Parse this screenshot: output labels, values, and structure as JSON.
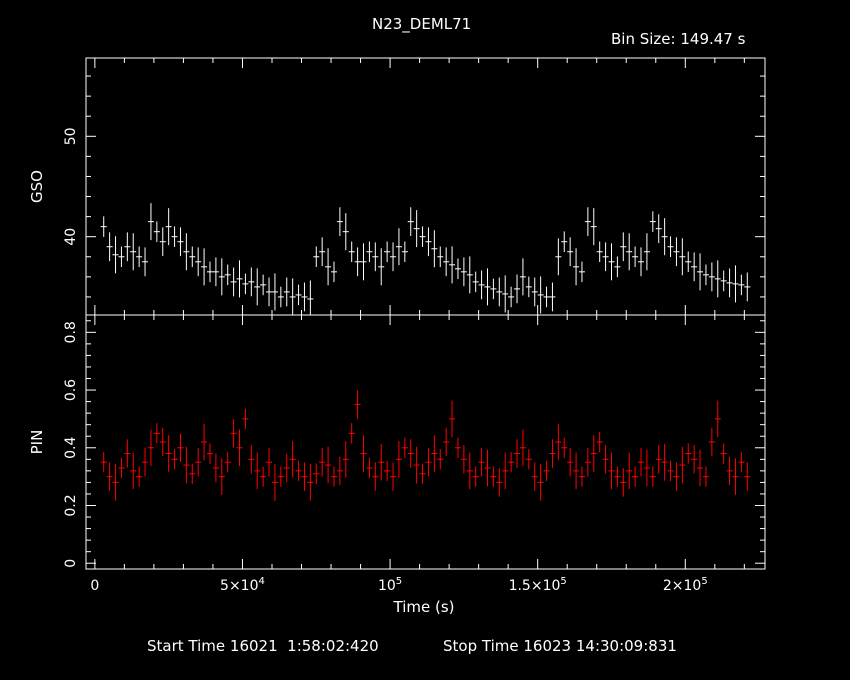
{
  "title": "N23_DEML71",
  "bin_size_label": "Bin Size:",
  "bin_size_value": "149.47 s",
  "start_time_label": "Start Time",
  "start_time": "16021  1:58:02:420",
  "stop_time_label": "Stop Time",
  "stop_time": "16023 14:30:09:831",
  "colors": {
    "background": "#000000",
    "axes": "#ffffff",
    "gso": "#ffffff",
    "pin": "#ff0000"
  },
  "chart_data": [
    {
      "type": "line",
      "panel": "top",
      "ylabel": "GSO",
      "xlim": [
        -3000,
        227000
      ],
      "ylim": [
        32.2,
        57.8
      ],
      "yticks": [
        40,
        50
      ],
      "x_tick_labels": [],
      "x": [
        3000,
        5000,
        7000,
        9000,
        11000,
        13000,
        15000,
        17000,
        19000,
        21000,
        23000,
        25000,
        27000,
        29000,
        31000,
        33000,
        35000,
        37000,
        39000,
        41000,
        43000,
        45000,
        47000,
        49000,
        51000,
        53000,
        55000,
        57000,
        59000,
        61000,
        63000,
        65000,
        67000,
        69000,
        71000,
        73000,
        75000,
        77000,
        79000,
        81000,
        83000,
        85000,
        87000,
        89000,
        91000,
        93000,
        95000,
        97000,
        99000,
        101000,
        103000,
        105000,
        107000,
        109000,
        111000,
        113000,
        115000,
        117000,
        119000,
        121000,
        123000,
        125000,
        127000,
        129000,
        131000,
        133000,
        135000,
        137000,
        139000,
        141000,
        143000,
        145000,
        147000,
        149000,
        151000,
        153000,
        155000,
        157000,
        159000,
        161000,
        163000,
        165000,
        167000,
        169000,
        171000,
        173000,
        175000,
        177000,
        179000,
        181000,
        183000,
        185000,
        187000,
        189000,
        191000,
        193000,
        195000,
        197000,
        199000,
        201000,
        203000,
        205000,
        207000,
        209000,
        211000,
        213000,
        215000,
        217000,
        219000,
        221000
      ],
      "y": [
        41,
        39,
        38.2,
        38,
        39,
        38.5,
        38,
        37.5,
        41.5,
        40.5,
        39.5,
        41,
        40,
        39.5,
        38.5,
        38,
        37.5,
        37,
        36.5,
        36.5,
        36,
        36.2,
        35.5,
        35.8,
        35.3,
        35.5,
        35,
        35.2,
        34.5,
        34.5,
        34,
        34.5,
        34,
        34.2,
        34,
        33.8,
        38,
        38.5,
        37,
        36.5,
        41.5,
        40.5,
        38.5,
        37.5,
        37.5,
        38.5,
        38,
        37,
        38.5,
        38,
        39,
        38.5,
        41.5,
        40.8,
        40,
        39.5,
        38.8,
        38,
        37.5,
        37.2,
        36.8,
        36.5,
        36.2,
        35.5,
        35.2,
        35,
        34.8,
        34.5,
        34.3,
        34,
        34.8,
        36,
        35,
        34.5,
        34.2,
        34,
        34,
        38,
        39.5,
        38.5,
        37,
        36.5,
        41.5,
        41,
        38.5,
        38,
        37.5,
        37,
        39,
        38.5,
        38,
        37.5,
        38.5,
        41.5,
        40.8,
        40,
        39,
        38.5,
        38,
        37.5,
        37,
        36.5,
        36.2,
        36,
        35.8,
        35.6,
        35.4,
        35.3,
        35.2,
        35
      ]
    },
    {
      "type": "line",
      "panel": "bottom",
      "ylabel": "PIN",
      "xlabel": "Time (s)",
      "xlim": [
        -3000,
        227000
      ],
      "ylim": [
        -0.02,
        0.86
      ],
      "yticks": [
        0,
        0.2,
        0.4,
        0.6,
        0.8
      ],
      "y_tick_labels": [
        "0",
        "0.2",
        "0.4",
        "0.6",
        "0.8"
      ],
      "xticks": [
        0,
        50000,
        100000,
        150000,
        200000
      ],
      "x_tick_labels": [
        {
          "base": "0"
        },
        {
          "base": "5×10",
          "exp": "4"
        },
        {
          "base": "10",
          "exp": "5"
        },
        {
          "base": "1.5×10",
          "exp": "5"
        },
        {
          "base": "2×10",
          "exp": "5"
        }
      ],
      "x": [
        3000,
        5000,
        7000,
        9000,
        11000,
        13000,
        15000,
        17000,
        19000,
        21000,
        23000,
        25000,
        27000,
        29000,
        31000,
        33000,
        35000,
        37000,
        39000,
        41000,
        43000,
        45000,
        47000,
        49000,
        51000,
        53000,
        55000,
        57000,
        59000,
        61000,
        63000,
        65000,
        67000,
        69000,
        71000,
        73000,
        75000,
        77000,
        79000,
        81000,
        83000,
        85000,
        87000,
        89000,
        91000,
        93000,
        95000,
        97000,
        99000,
        101000,
        103000,
        105000,
        107000,
        109000,
        111000,
        113000,
        115000,
        117000,
        119000,
        121000,
        123000,
        125000,
        127000,
        129000,
        131000,
        133000,
        135000,
        137000,
        139000,
        141000,
        143000,
        145000,
        147000,
        149000,
        151000,
        153000,
        155000,
        157000,
        159000,
        161000,
        163000,
        165000,
        167000,
        169000,
        171000,
        173000,
        175000,
        177000,
        179000,
        181000,
        183000,
        185000,
        187000,
        189000,
        191000,
        193000,
        195000,
        197000,
        199000,
        201000,
        203000,
        205000,
        207000,
        209000,
        211000,
        213000,
        215000,
        217000,
        219000,
        221000
      ],
      "y": [
        0.35,
        0.3,
        0.28,
        0.33,
        0.38,
        0.32,
        0.3,
        0.35,
        0.4,
        0.45,
        0.42,
        0.38,
        0.36,
        0.4,
        0.34,
        0.31,
        0.35,
        0.42,
        0.38,
        0.33,
        0.3,
        0.35,
        0.45,
        0.4,
        0.5,
        0.36,
        0.32,
        0.3,
        0.35,
        0.28,
        0.3,
        0.33,
        0.36,
        0.32,
        0.3,
        0.28,
        0.31,
        0.35,
        0.34,
        0.3,
        0.32,
        0.36,
        0.45,
        0.55,
        0.38,
        0.33,
        0.3,
        0.35,
        0.32,
        0.3,
        0.36,
        0.4,
        0.38,
        0.34,
        0.31,
        0.35,
        0.38,
        0.36,
        0.42,
        0.5,
        0.4,
        0.36,
        0.32,
        0.3,
        0.35,
        0.33,
        0.3,
        0.28,
        0.32,
        0.35,
        0.38,
        0.4,
        0.36,
        0.3,
        0.28,
        0.32,
        0.38,
        0.42,
        0.4,
        0.35,
        0.32,
        0.3,
        0.35,
        0.38,
        0.42,
        0.36,
        0.32,
        0.3,
        0.28,
        0.32,
        0.3,
        0.35,
        0.33,
        0.3,
        0.36,
        0.35,
        0.32,
        0.3,
        0.34,
        0.38,
        0.36,
        0.33,
        0.3,
        0.42,
        0.5,
        0.38,
        0.32,
        0.3,
        0.35,
        0.3
      ]
    }
  ]
}
